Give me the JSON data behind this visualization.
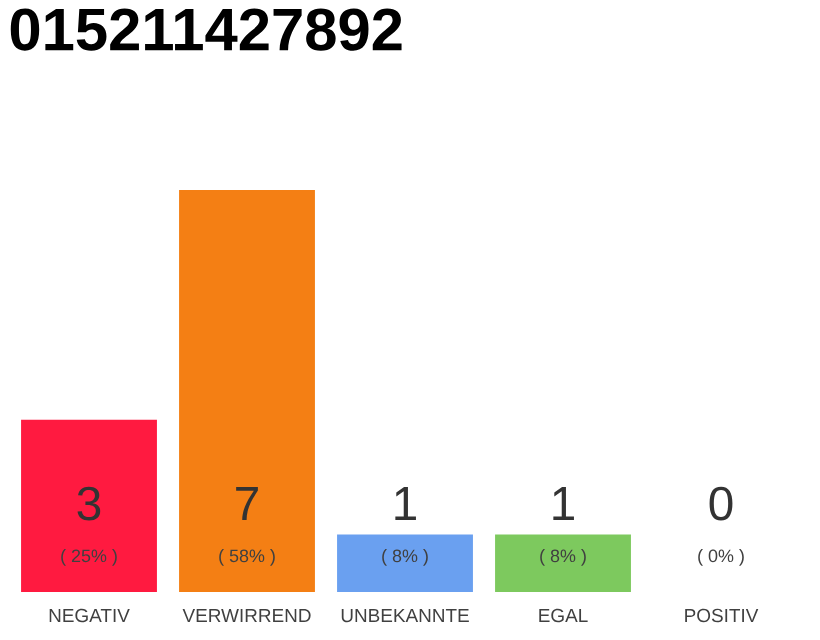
{
  "chart_data": {
    "type": "bar",
    "title": "015211427892",
    "categories": [
      "NEGATIV",
      "VERWIRREND",
      "UNBEKANNTE",
      "EGAL",
      "POSITIV"
    ],
    "values": [
      3,
      7,
      1,
      1,
      0
    ],
    "colors": [
      "#ff1a40",
      "#f47f14",
      "#6aa0f0",
      "#7dc95e",
      "#cccccc"
    ],
    "value_labels": [
      "3",
      "7",
      "1",
      "1",
      "0"
    ],
    "annotations": [
      "( 25% )",
      "( 58% )",
      "( 8% )",
      "( 8% )",
      "( 0% )"
    ]
  }
}
